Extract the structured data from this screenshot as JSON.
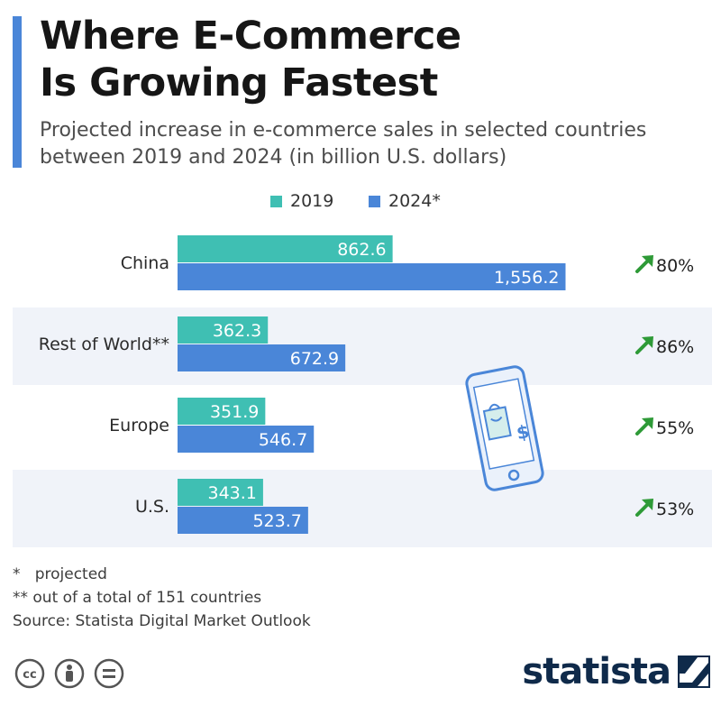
{
  "title_lines": [
    "Where E-Commerce",
    "Is Growing Fastest"
  ],
  "subtitle_lines": [
    "Projected increase in e-commerce sales in selected countries",
    "between 2019 and 2024 (in billion U.S. dollars)"
  ],
  "colors": {
    "accent": "#4a86d8",
    "series_2019": "#3fbfb3",
    "series_2024": "#4a86d8",
    "growth_arrow": "#2e9a37",
    "band": "#f0f3f9"
  },
  "chart_data": {
    "type": "bar",
    "orientation": "horizontal",
    "title": "Where E-Commerce Is Growing Fastest",
    "subtitle": "Projected increase in e-commerce sales in selected countries between 2019 and 2024 (in billion U.S. dollars)",
    "categories": [
      "China",
      "Rest of World**",
      "Europe",
      "U.S."
    ],
    "series": [
      {
        "name": "2019",
        "values": [
          862.6,
          362.3,
          351.9,
          343.1
        ],
        "labels": [
          "862.6",
          "362.3",
          "351.9",
          "343.1"
        ]
      },
      {
        "name": "2024*",
        "values": [
          1556.2,
          672.9,
          546.7,
          523.7
        ],
        "labels": [
          "1,556.2",
          "672.9",
          "546.7",
          "523.7"
        ]
      }
    ],
    "growth_labels": [
      "80%",
      "86%",
      "55%",
      "53%"
    ],
    "xlim": [
      0,
      1600
    ],
    "grid": false,
    "legend_position": "top"
  },
  "footnotes": [
    "*   projected",
    "** out of a total of 151 countries",
    "Source: Statista Digital Market Outlook"
  ],
  "icons": {
    "growth": "up-right-arrow-icon",
    "phone": "phone-shopping-bag-icon",
    "license": [
      "cc-icon",
      "by-icon",
      "nd-icon"
    ],
    "brand": "statista-logo-icon"
  },
  "brand": {
    "name": "statista"
  }
}
